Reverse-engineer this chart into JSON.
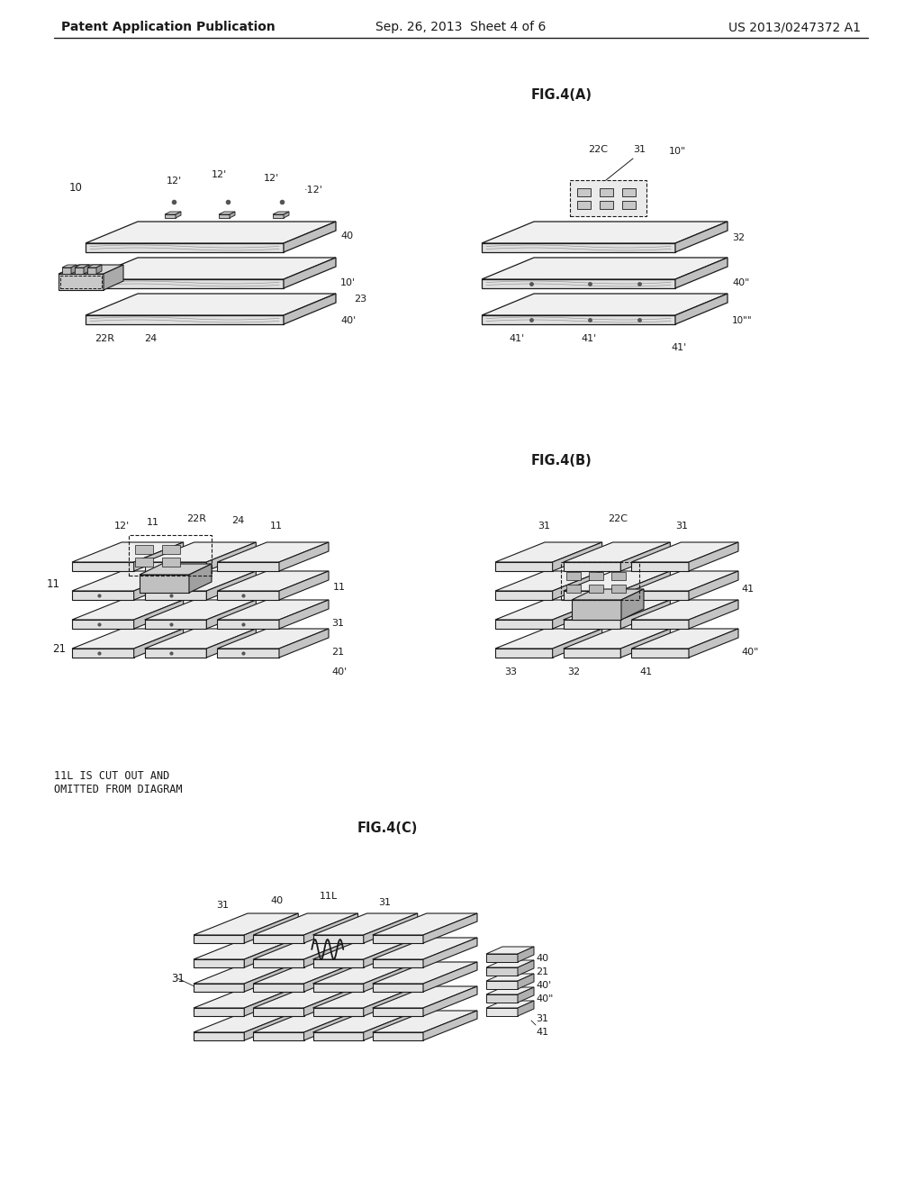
{
  "page_background": "#ffffff",
  "header_left": "Patent Application Publication",
  "header_center": "Sep. 26, 2013  Sheet 4 of 6",
  "header_right": "US 2013/0247372 A1",
  "fig4a_label": "FIG.4(A)",
  "fig4b_label": "FIG.4(B)",
  "fig4c_label": "FIG.4(C)",
  "note_text": "11L IS CUT OUT AND\nOMITTED FROM DIAGRAM",
  "lc": "#1a1a1a",
  "face_light": "#e8e8e8",
  "face_mid": "#d8d8d8",
  "face_dark": "#c0c0c0",
  "top_light": "#f2f2f2",
  "top_mid": "#e5e5e5",
  "side_mid": "#b8b8b8"
}
